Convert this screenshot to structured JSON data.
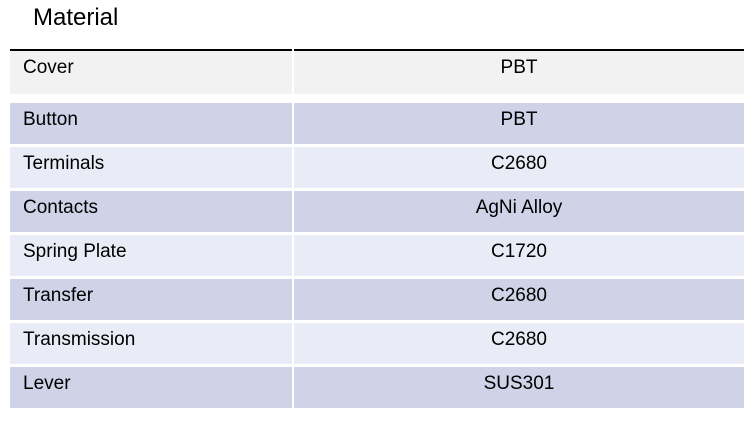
{
  "page": {
    "title": "Material"
  },
  "table": {
    "rows": [
      {
        "label": "Cover",
        "value": "PBT"
      },
      {
        "label": "Button",
        "value": "PBT"
      },
      {
        "label": "Terminals",
        "value": "C2680"
      },
      {
        "label": "Contacts",
        "value": "AgNi Alloy"
      },
      {
        "label": "Spring Plate",
        "value": "C1720"
      },
      {
        "label": "Transfer",
        "value": "C2680"
      },
      {
        "label": "Transmission",
        "value": "C2680"
      },
      {
        "label": "Lever",
        "value": "SUS301"
      }
    ],
    "colors": {
      "header_row_bg": "#f2f2f2",
      "band_dark_bg": "#cfd3e8",
      "band_light_bg": "#e9ebf6",
      "top_border": "#000000",
      "text": "#000000"
    }
  }
}
